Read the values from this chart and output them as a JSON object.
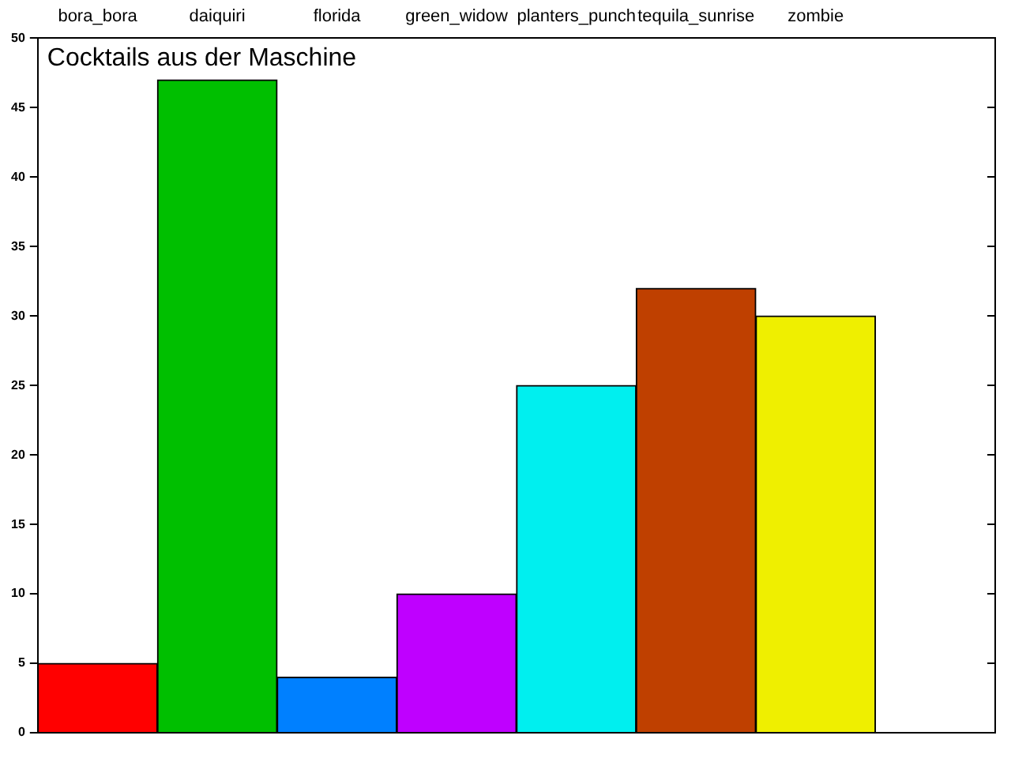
{
  "chart_data": {
    "type": "bar",
    "title": "Cocktails aus der Maschine",
    "categories": [
      "bora_bora",
      "daiquiri",
      "florida",
      "green_widow",
      "planters_punch",
      "tequila_sunrise",
      "zombie",
      null
    ],
    "values": [
      5,
      47,
      4,
      10,
      25,
      32,
      30,
      null
    ],
    "colors": [
      "#ff0000",
      "#00bf00",
      "#0080ff",
      "#bf00ff",
      "#00efef",
      "#bf4000",
      "#efef00",
      "#ffffff"
    ],
    "ylim": [
      0,
      50
    ],
    "yticks": [
      0,
      5,
      10,
      15,
      20,
      25,
      30,
      35,
      40,
      45,
      50
    ],
    "grid": false
  }
}
